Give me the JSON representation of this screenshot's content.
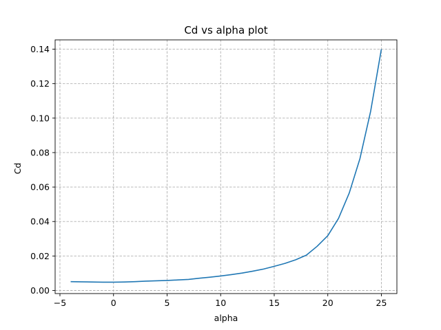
{
  "chart_data": {
    "type": "line",
    "title": "Cd vs alpha plot",
    "xlabel": "alpha",
    "ylabel": "Cd",
    "xlim": [
      -5.45,
      26.45
    ],
    "ylim": [
      -0.0018,
      0.1454
    ],
    "xticks": [
      -5,
      0,
      5,
      10,
      15,
      20,
      25
    ],
    "xtick_labels": [
      "−5",
      "0",
      "5",
      "10",
      "15",
      "20",
      "25"
    ],
    "yticks": [
      0.0,
      0.02,
      0.04,
      0.06,
      0.08,
      0.1,
      0.12,
      0.14
    ],
    "ytick_labels": [
      "0.00",
      "0.02",
      "0.04",
      "0.06",
      "0.08",
      "0.10",
      "0.12",
      "0.14"
    ],
    "grid": true,
    "series": [
      {
        "color": "#1f77b4",
        "x": [
          -4,
          -3,
          -2,
          -1,
          0,
          1,
          2,
          3,
          4,
          5,
          6,
          7,
          8,
          9,
          10,
          11,
          12,
          13,
          14,
          15,
          16,
          17,
          18,
          19,
          20,
          21,
          22,
          23,
          24,
          25
        ],
        "y": [
          0.0051,
          0.005,
          0.0049,
          0.0048,
          0.0048,
          0.0049,
          0.0051,
          0.0054,
          0.0056,
          0.0058,
          0.0061,
          0.0064,
          0.0071,
          0.0077,
          0.0084,
          0.0092,
          0.0101,
          0.0112,
          0.0124,
          0.014,
          0.0157,
          0.0178,
          0.0205,
          0.0256,
          0.0318,
          0.0418,
          0.0565,
          0.0765,
          0.104,
          0.14
        ]
      }
    ]
  }
}
